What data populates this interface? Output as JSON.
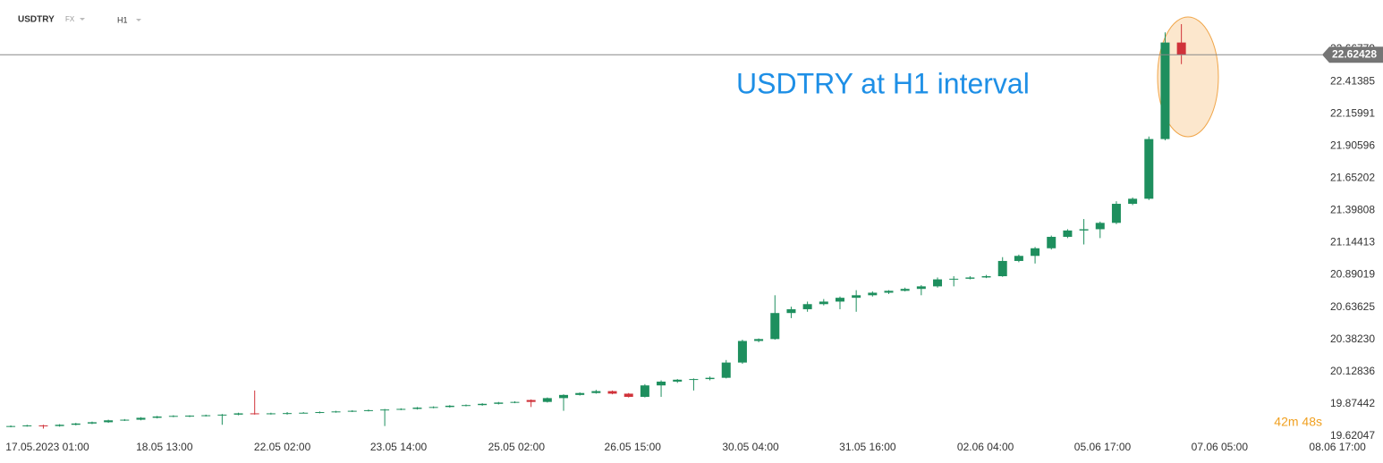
{
  "header": {
    "symbol": "USDTRY",
    "market": "FX",
    "interval": "H1",
    "timer": "42m 48s"
  },
  "chart_data": {
    "type": "candlestick",
    "annotation": "USDTRY at H1 interval",
    "up_color": "#1e8f5e",
    "down_color": "#d0323a",
    "last_price": 22.62428,
    "xlim": [
      -0.5,
      84.4
    ],
    "ylim": [
      19.409,
      23.055
    ],
    "xticks": [
      {
        "value": 2.25,
        "label": "17.05.2023  01:00"
      },
      {
        "value": 9.45,
        "label": "18.05  13:00"
      },
      {
        "value": 16.7,
        "label": "22.05  02:00"
      },
      {
        "value": 23.85,
        "label": "23.05  14:00"
      },
      {
        "value": 31.1,
        "label": "25.05  02:00"
      },
      {
        "value": 38.25,
        "label": "26.05  15:00"
      },
      {
        "value": 45.5,
        "label": "30.05  04:00"
      },
      {
        "value": 52.7,
        "label": "31.05  16:00"
      },
      {
        "value": 59.95,
        "label": "02.06  04:00"
      },
      {
        "value": 67.15,
        "label": "05.06  17:00"
      },
      {
        "value": 74.35,
        "label": "07.06  05:00"
      },
      {
        "value": 81.6,
        "label": "08.06  17:00"
      }
    ],
    "yticks": [
      19.62047,
      19.87442,
      20.12836,
      {
        "value": 20.3823,
        "label": "20.38230"
      },
      20.63625,
      20.89019,
      21.14413,
      21.39808,
      21.65202,
      21.90596,
      22.15991,
      22.41385,
      22.66779
    ],
    "candles": [
      [
        19.695,
        19.705,
        19.69,
        19.7
      ],
      [
        19.7,
        19.71,
        19.695,
        19.705
      ],
      [
        19.705,
        19.71,
        19.68,
        19.7
      ],
      [
        19.7,
        19.715,
        19.695,
        19.71
      ],
      [
        19.71,
        19.725,
        19.705,
        19.72
      ],
      [
        19.72,
        19.735,
        19.715,
        19.73
      ],
      [
        19.73,
        19.75,
        19.725,
        19.745
      ],
      [
        19.745,
        19.755,
        19.74,
        19.75
      ],
      [
        19.75,
        19.77,
        19.745,
        19.765
      ],
      [
        19.765,
        19.78,
        19.76,
        19.775
      ],
      [
        19.775,
        19.785,
        19.77,
        19.78
      ],
      [
        19.78,
        19.785,
        19.77,
        19.782
      ],
      [
        19.782,
        19.79,
        19.775,
        19.785
      ],
      [
        19.785,
        19.795,
        19.71,
        19.79
      ],
      [
        19.79,
        19.805,
        19.785,
        19.8
      ],
      [
        19.8,
        19.98,
        19.79,
        19.795
      ],
      [
        19.795,
        19.805,
        19.79,
        19.8
      ],
      [
        19.8,
        19.81,
        19.79,
        19.802
      ],
      [
        19.802,
        19.81,
        19.8,
        19.805
      ],
      [
        19.805,
        19.815,
        19.8,
        19.81
      ],
      [
        19.81,
        19.82,
        19.805,
        19.815
      ],
      [
        19.815,
        19.825,
        19.81,
        19.82
      ],
      [
        19.82,
        19.83,
        19.815,
        19.825
      ],
      [
        19.825,
        19.835,
        19.7,
        19.83
      ],
      [
        19.83,
        19.84,
        19.825,
        19.835
      ],
      [
        19.835,
        19.85,
        19.83,
        19.845
      ],
      [
        19.845,
        19.855,
        19.84,
        19.85
      ],
      [
        19.85,
        19.865,
        19.845,
        19.86
      ],
      [
        19.86,
        19.87,
        19.855,
        19.865
      ],
      [
        19.865,
        19.88,
        19.86,
        19.875
      ],
      [
        19.875,
        19.89,
        19.87,
        19.885
      ],
      [
        19.885,
        19.895,
        19.88,
        19.89
      ],
      [
        19.905,
        19.91,
        19.85,
        19.89
      ],
      [
        19.89,
        19.925,
        19.885,
        19.92
      ],
      [
        19.92,
        19.95,
        19.82,
        19.945
      ],
      [
        19.945,
        19.965,
        19.94,
        19.96
      ],
      [
        19.96,
        19.985,
        19.955,
        19.975
      ],
      [
        19.975,
        19.98,
        19.95,
        19.955
      ],
      [
        19.955,
        19.96,
        19.925,
        19.93
      ],
      [
        19.93,
        20.03,
        19.925,
        20.02
      ],
      [
        20.02,
        20.06,
        19.93,
        20.05
      ],
      [
        20.05,
        20.07,
        20.04,
        20.065
      ],
      [
        20.065,
        20.075,
        19.98,
        20.07
      ],
      [
        20.07,
        20.09,
        20.06,
        20.08
      ],
      [
        20.08,
        20.22,
        20.075,
        20.2
      ],
      [
        20.2,
        20.38,
        20.19,
        20.37
      ],
      [
        20.37,
        20.39,
        20.36,
        20.385
      ],
      [
        20.385,
        20.73,
        20.38,
        20.59
      ],
      [
        20.59,
        20.64,
        20.55,
        20.62
      ],
      [
        20.62,
        20.68,
        20.6,
        20.66
      ],
      [
        20.66,
        20.7,
        20.65,
        20.68
      ],
      [
        20.68,
        20.72,
        20.62,
        20.71
      ],
      [
        20.71,
        20.77,
        20.6,
        20.73
      ],
      [
        20.73,
        20.76,
        20.72,
        20.75
      ],
      [
        20.75,
        20.77,
        20.74,
        20.765
      ],
      [
        20.765,
        20.79,
        20.76,
        20.78
      ],
      [
        20.78,
        20.81,
        20.73,
        20.8
      ],
      [
        20.8,
        20.87,
        20.79,
        20.855
      ],
      [
        20.855,
        20.88,
        20.8,
        20.86
      ],
      [
        20.86,
        20.88,
        20.855,
        20.87
      ],
      [
        20.87,
        20.89,
        20.865,
        20.88
      ],
      [
        20.88,
        21.03,
        20.875,
        21.0
      ],
      [
        21.0,
        21.05,
        20.99,
        21.04
      ],
      [
        21.04,
        21.11,
        20.98,
        21.1
      ],
      [
        21.1,
        21.2,
        21.09,
        21.19
      ],
      [
        21.19,
        21.25,
        21.18,
        21.24
      ],
      [
        21.24,
        21.33,
        21.13,
        21.25
      ],
      [
        21.25,
        21.31,
        21.18,
        21.3
      ],
      [
        21.3,
        21.47,
        21.29,
        21.45
      ],
      [
        21.45,
        21.5,
        21.44,
        21.49
      ],
      [
        21.49,
        21.98,
        21.48,
        21.96
      ],
      [
        21.96,
        22.8,
        21.95,
        22.72
      ],
      [
        22.72,
        22.865,
        22.55,
        22.62428
      ]
    ]
  }
}
